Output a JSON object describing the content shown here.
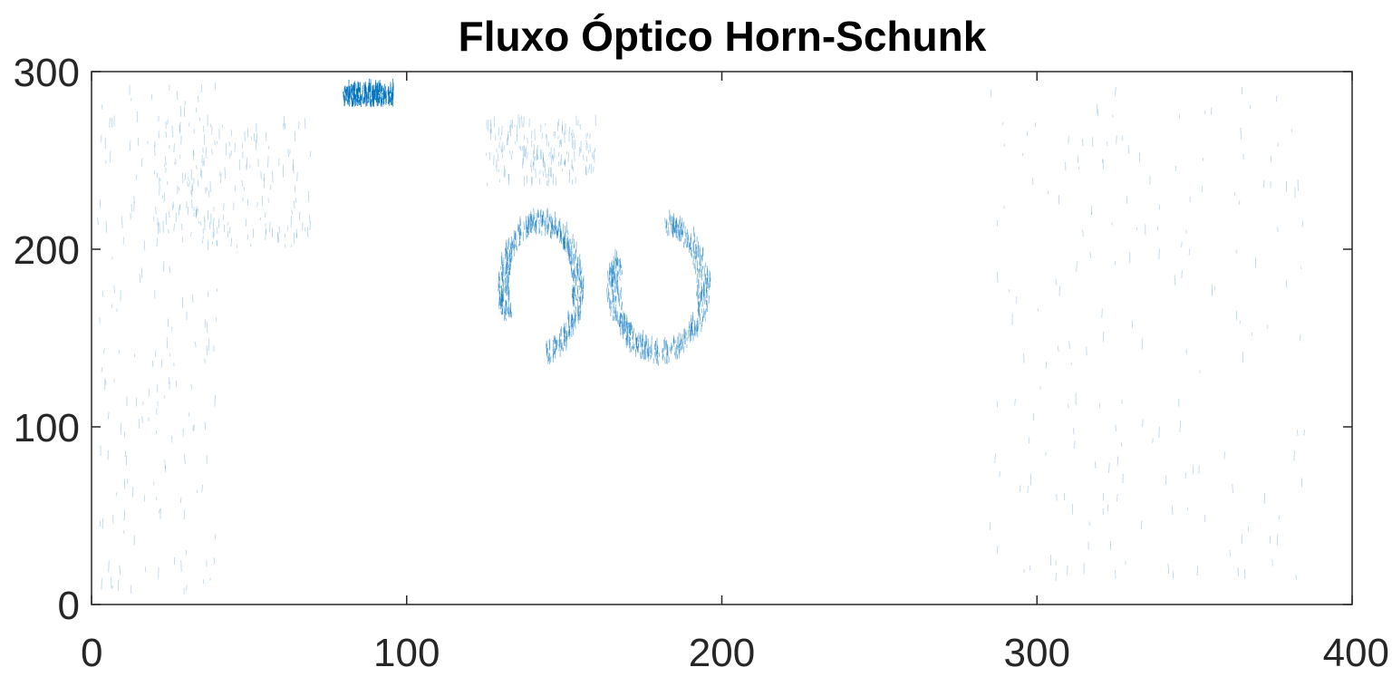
{
  "chart_data": {
    "type": "quiver",
    "title": "Fluxo Óptico Horn-Schunk",
    "xlabel": "",
    "ylabel": "",
    "xlim": [
      0,
      400
    ],
    "ylim": [
      0,
      300
    ],
    "xticks": [
      0,
      100,
      200,
      300,
      400
    ],
    "yticks": [
      0,
      100,
      200,
      300
    ],
    "xtick_labels": [
      "0",
      "100",
      "200",
      "300",
      "400"
    ],
    "ytick_labels": [
      "0",
      "100",
      "200",
      "300"
    ],
    "grid": false,
    "box": true,
    "color": "#0072BD",
    "axis_color": "#262626",
    "clusters": [
      {
        "name": "top-dark-blob",
        "x": [
          80,
          96
        ],
        "y": [
          280,
          290
        ],
        "intensity": "high"
      },
      {
        "name": "center-left-arc",
        "x": [
          130,
          155
        ],
        "y": [
          138,
          215
        ],
        "intensity": "medium"
      },
      {
        "name": "center-right-arc",
        "x": [
          165,
          195
        ],
        "y": [
          138,
          215
        ],
        "intensity": "medium"
      },
      {
        "name": "upper-left-diagonal",
        "x": [
          20,
          70
        ],
        "y": [
          200,
          270
        ],
        "intensity": "low"
      },
      {
        "name": "upper-mid-band",
        "x": [
          125,
          160
        ],
        "y": [
          235,
          270
        ],
        "intensity": "low"
      },
      {
        "name": "left-edge-noise",
        "x": [
          2,
          40
        ],
        "y": [
          5,
          290
        ],
        "intensity": "low"
      },
      {
        "name": "right-side-noise",
        "x": [
          285,
          385
        ],
        "y": [
          10,
          290
        ],
        "intensity": "low"
      }
    ]
  }
}
